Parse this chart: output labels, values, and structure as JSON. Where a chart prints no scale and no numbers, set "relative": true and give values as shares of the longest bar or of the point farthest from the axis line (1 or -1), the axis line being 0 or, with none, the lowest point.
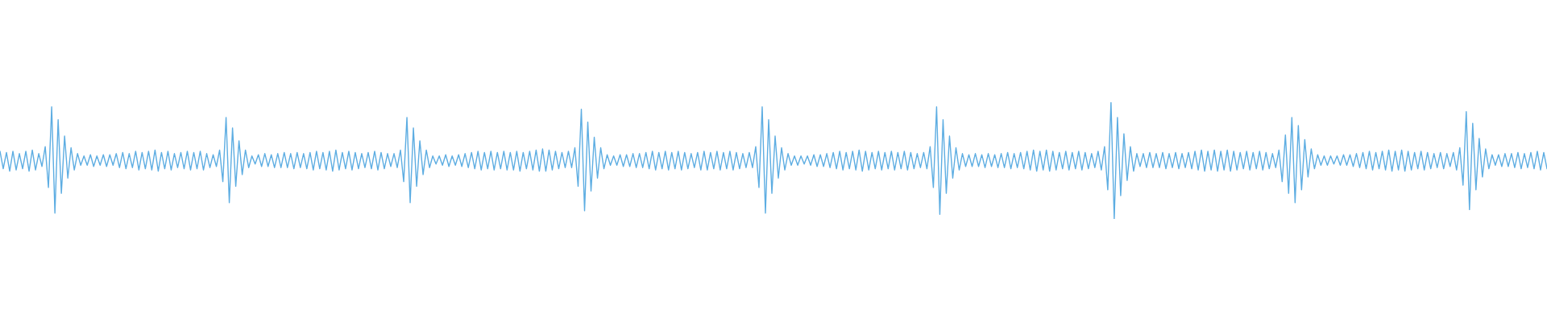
{
  "chart_data": {
    "type": "line",
    "relative": true,
    "color": "#5dade2",
    "categories": [
      null,
      null,
      null,
      null,
      null,
      null,
      null,
      null,
      null,
      null,
      null,
      null,
      null,
      null,
      null,
      null,
      null,
      null,
      null,
      null,
      null,
      null,
      null,
      null,
      null,
      null,
      null,
      null,
      null,
      null,
      null,
      null,
      null,
      null,
      null,
      null,
      null,
      null,
      null,
      null,
      null,
      null,
      null,
      null,
      null,
      null,
      null,
      null,
      null,
      null,
      null,
      null,
      null,
      null,
      null,
      null,
      null,
      null,
      null,
      null,
      null,
      null,
      null,
      null,
      null,
      null,
      null,
      null,
      null,
      null,
      null,
      null,
      null,
      null,
      null,
      null,
      null,
      null,
      null,
      null,
      null,
      null,
      null,
      null,
      null,
      null,
      null,
      null,
      null,
      null,
      null,
      null,
      null,
      null,
      null,
      null,
      null,
      null,
      null,
      null,
      null,
      null,
      null,
      null,
      null,
      null,
      null,
      null,
      null,
      null,
      null,
      null,
      null,
      null,
      null,
      null,
      null,
      null,
      null,
      null,
      null,
      null,
      null,
      null,
      null,
      null,
      null,
      null,
      null,
      null,
      null,
      null,
      null,
      null,
      null,
      null,
      null,
      null,
      null,
      null,
      null,
      null,
      null,
      null,
      null,
      null,
      null,
      null,
      null,
      null,
      null,
      null,
      null,
      null,
      null,
      null,
      null,
      null,
      null,
      null,
      null,
      null,
      null,
      null,
      null,
      null,
      null,
      null,
      null,
      null,
      null,
      null,
      null,
      null,
      null,
      null,
      null,
      null,
      null,
      null,
      null,
      null,
      null,
      null,
      null,
      null,
      null,
      null,
      null,
      null,
      null,
      null,
      null,
      null,
      null,
      null,
      null,
      null,
      null,
      null,
      null,
      null,
      null,
      null,
      null,
      null,
      null,
      null,
      null,
      null,
      null,
      null,
      null,
      null,
      null,
      null,
      null,
      null,
      null,
      null,
      null,
      null,
      null,
      null,
      null,
      null,
      null,
      null,
      null,
      null,
      null,
      null,
      null,
      null,
      null,
      null,
      null,
      null,
      null,
      null,
      null,
      null,
      null,
      null,
      null,
      null,
      null,
      null,
      null,
      null,
      null,
      null,
      null,
      null,
      null,
      null,
      null,
      null,
      null,
      null,
      null,
      null,
      null,
      null,
      null,
      null,
      null,
      null,
      null,
      null,
      null,
      null,
      null,
      null,
      null,
      null,
      null,
      null,
      null,
      null,
      null,
      null,
      null,
      null,
      null,
      null,
      null,
      null,
      null,
      null,
      null,
      null,
      null,
      null,
      null,
      null,
      null,
      null,
      null,
      null,
      null,
      null,
      null,
      null,
      null,
      null,
      null,
      null,
      null,
      null,
      null,
      null,
      null,
      null,
      null,
      null,
      null,
      null,
      null,
      null,
      null,
      null,
      null,
      null,
      null,
      null,
      null,
      null,
      null,
      null,
      null,
      null,
      null,
      null,
      null,
      null,
      null,
      null,
      null,
      null,
      null,
      null,
      null,
      null,
      null,
      null,
      null,
      null,
      null,
      null,
      null,
      null,
      null,
      null,
      null,
      null,
      null,
      null,
      null,
      null,
      null,
      null,
      null,
      null,
      null,
      null,
      null,
      null,
      null,
      null,
      null,
      null,
      null,
      null,
      null,
      null,
      null,
      null,
      null,
      null,
      null,
      null,
      null,
      null,
      null,
      null,
      null,
      null,
      null,
      null,
      null,
      null,
      null,
      null,
      null,
      null,
      null,
      null,
      null,
      null,
      null,
      null,
      null,
      null,
      null,
      null,
      null,
      null,
      null,
      null,
      null,
      null,
      null,
      null,
      null,
      null,
      null,
      null,
      null,
      null,
      null,
      null,
      null,
      null,
      null,
      null,
      null,
      null,
      null,
      null,
      null,
      null,
      null,
      null,
      null,
      null,
      null,
      null,
      null,
      null,
      null,
      null,
      null,
      null,
      null,
      null,
      null,
      null,
      null,
      null,
      null,
      null,
      null,
      null,
      null,
      null,
      null,
      null,
      null,
      null,
      null,
      null,
      null,
      null,
      null,
      null,
      null,
      null,
      null,
      null,
      null,
      null,
      null,
      null,
      null,
      null,
      null,
      null,
      null,
      null
    ],
    "values": [
      0.58,
      0.43,
      0.57,
      0.41,
      0.58,
      0.42,
      0.56,
      0.43,
      0.58,
      0.41,
      0.59,
      0.42,
      0.56,
      0.45,
      0.62,
      0.27,
      0.96,
      0.05,
      0.85,
      0.22,
      0.71,
      0.35,
      0.61,
      0.42,
      0.56,
      0.46,
      0.54,
      0.46,
      0.55,
      0.45,
      0.54,
      0.46,
      0.55,
      0.45,
      0.55,
      0.46,
      0.56,
      0.44,
      0.57,
      0.43,
      0.56,
      0.44,
      0.58,
      0.42,
      0.57,
      0.43,
      0.58,
      0.42,
      0.59,
      0.41,
      0.57,
      0.43,
      0.58,
      0.42,
      0.56,
      0.44,
      0.57,
      0.43,
      0.58,
      0.42,
      0.57,
      0.43,
      0.58,
      0.42,
      0.56,
      0.44,
      0.55,
      0.45,
      0.59,
      0.32,
      0.87,
      0.14,
      0.78,
      0.28,
      0.67,
      0.38,
      0.59,
      0.44,
      0.54,
      0.47,
      0.55,
      0.45,
      0.56,
      0.45,
      0.55,
      0.44,
      0.56,
      0.44,
      0.57,
      0.44,
      0.56,
      0.43,
      0.57,
      0.44,
      0.56,
      0.43,
      0.57,
      0.42,
      0.58,
      0.43,
      0.57,
      0.42,
      0.58,
      0.41,
      0.59,
      0.42,
      0.57,
      0.43,
      0.58,
      0.42,
      0.57,
      0.43,
      0.56,
      0.44,
      0.57,
      0.43,
      0.58,
      0.42,
      0.57,
      0.43,
      0.56,
      0.45,
      0.56,
      0.44,
      0.59,
      0.32,
      0.87,
      0.14,
      0.78,
      0.28,
      0.67,
      0.38,
      0.59,
      0.44,
      0.54,
      0.47,
      0.54,
      0.46,
      0.55,
      0.45,
      0.54,
      0.46,
      0.55,
      0.45,
      0.56,
      0.44,
      0.57,
      0.43,
      0.58,
      0.42,
      0.57,
      0.43,
      0.58,
      0.42,
      0.57,
      0.43,
      0.58,
      0.42,
      0.57,
      0.42,
      0.58,
      0.41,
      0.57,
      0.43,
      0.58,
      0.42,
      0.59,
      0.41,
      0.6,
      0.41,
      0.59,
      0.42,
      0.58,
      0.43,
      0.57,
      0.44,
      0.58,
      0.44,
      0.61,
      0.28,
      0.94,
      0.07,
      0.83,
      0.24,
      0.7,
      0.35,
      0.61,
      0.43,
      0.55,
      0.46,
      0.54,
      0.46,
      0.55,
      0.45,
      0.55,
      0.45,
      0.56,
      0.44,
      0.56,
      0.44,
      0.57,
      0.43,
      0.58,
      0.42,
      0.57,
      0.43,
      0.58,
      0.42,
      0.57,
      0.43,
      0.58,
      0.42,
      0.57,
      0.43,
      0.56,
      0.44,
      0.57,
      0.42,
      0.58,
      0.42,
      0.57,
      0.43,
      0.58,
      0.42,
      0.57,
      0.43,
      0.58,
      0.42,
      0.57,
      0.43,
      0.56,
      0.44,
      0.57,
      0.44,
      0.62,
      0.27,
      0.96,
      0.05,
      0.85,
      0.22,
      0.71,
      0.35,
      0.61,
      0.42,
      0.56,
      0.46,
      0.54,
      0.46,
      0.54,
      0.47,
      0.54,
      0.46,
      0.55,
      0.45,
      0.55,
      0.45,
      0.56,
      0.44,
      0.57,
      0.43,
      0.58,
      0.42,
      0.57,
      0.43,
      0.58,
      0.42,
      0.59,
      0.41,
      0.58,
      0.42,
      0.57,
      0.43,
      0.58,
      0.42,
      0.57,
      0.43,
      0.58,
      0.42,
      0.57,
      0.43,
      0.58,
      0.42,
      0.57,
      0.43,
      0.56,
      0.44,
      0.57,
      0.43,
      0.62,
      0.27,
      0.96,
      0.04,
      0.85,
      0.22,
      0.71,
      0.35,
      0.61,
      0.42,
      0.56,
      0.45,
      0.55,
      0.45,
      0.56,
      0.45,
      0.55,
      0.44,
      0.56,
      0.45,
      0.55,
      0.44,
      0.56,
      0.44,
      0.57,
      0.43,
      0.56,
      0.44,
      0.57,
      0.43,
      0.58,
      0.42,
      0.59,
      0.41,
      0.58,
      0.42,
      0.59,
      0.41,
      0.58,
      0.42,
      0.57,
      0.43,
      0.58,
      0.42,
      0.57,
      0.43,
      0.58,
      0.42,
      0.57,
      0.43,
      0.56,
      0.44,
      0.58,
      0.42,
      0.62,
      0.25,
      1,
      0,
      0.87,
      0.2,
      0.73,
      0.33,
      0.62,
      0.41,
      0.56,
      0.45,
      0.56,
      0.44,
      0.57,
      0.44,
      0.56,
      0.44,
      0.57,
      0.43,
      0.56,
      0.44,
      0.57,
      0.43,
      0.56,
      0.44,
      0.57,
      0.43,
      0.58,
      0.42,
      0.59,
      0.41,
      0.58,
      0.42,
      0.59,
      0.41,
      0.58,
      0.42,
      0.59,
      0.41,
      0.58,
      0.42,
      0.57,
      0.43,
      0.58,
      0.42,
      0.57,
      0.43,
      0.58,
      0.42,
      0.57,
      0.43,
      0.56,
      0.44,
      0.59,
      0.32,
      0.72,
      0.22,
      0.87,
      0.14,
      0.8,
      0.25,
      0.68,
      0.36,
      0.6,
      0.43,
      0.55,
      0.46,
      0.54,
      0.46,
      0.54,
      0.47,
      0.54,
      0.46,
      0.55,
      0.46,
      0.55,
      0.45,
      0.56,
      0.44,
      0.57,
      0.43,
      0.58,
      0.42,
      0.57,
      0.43,
      0.58,
      0.42,
      0.59,
      0.41,
      0.58,
      0.42,
      0.59,
      0.41,
      0.58,
      0.42,
      0.57,
      0.43,
      0.58,
      0.42,
      0.57,
      0.43,
      0.56,
      0.44,
      0.57,
      0.43,
      0.56,
      0.45,
      0.57,
      0.42,
      0.61,
      0.29,
      0.92,
      0.08,
      0.82,
      0.25,
      0.69,
      0.36,
      0.6,
      0.43,
      0.55,
      0.46,
      0.55,
      0.45,
      0.56,
      0.45,
      0.56,
      0.44,
      0.57,
      0.43,
      0.56,
      0.44,
      0.57,
      0.43,
      0.58,
      0.42,
      0.57,
      0.43
    ]
  }
}
